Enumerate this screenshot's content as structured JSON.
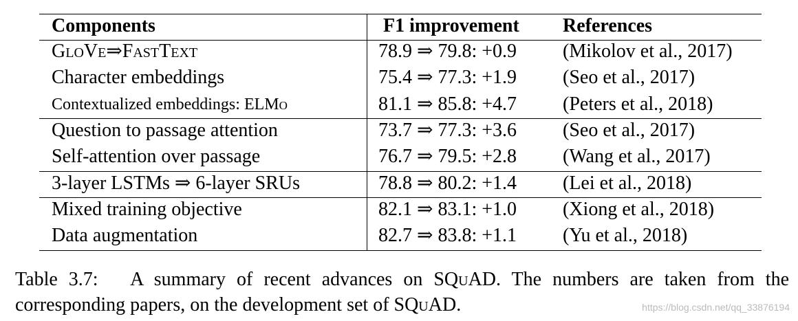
{
  "table": {
    "header": [
      "Components",
      "F1 improvement",
      "References"
    ],
    "rows": [
      {
        "component": "GloVe⇒FastText",
        "f1": "78.9 ⇒ 79.8: +0.9",
        "reference": "(Mikolov et al., 2017)"
      },
      {
        "component": "Character embeddings",
        "f1": "75.4 ⇒ 77.3: +1.9",
        "reference": "(Seo et al., 2017)"
      },
      {
        "component": "Contextualized embeddings: ",
        "component_smallcaps": "ELMo",
        "f1": "81.1 ⇒ 85.8: +4.7",
        "reference": "(Peters et al., 2018)"
      },
      {
        "component": "Question to passage attention",
        "f1": "73.7 ⇒ 77.3: +3.6",
        "reference": "(Seo et al., 2017)"
      },
      {
        "component": "Self-attention over passage",
        "f1": "76.7 ⇒ 79.5: +2.8",
        "reference": "(Wang et al., 2017)"
      },
      {
        "component": "3-layer LSTMs ⇒ 6-layer SRUs",
        "f1": "78.8 ⇒ 80.2: +1.4",
        "reference": "(Lei et al., 2018)"
      },
      {
        "component": "Mixed training objective",
        "f1": "82.1 ⇒ 83.1: +1.0",
        "reference": "(Xiong et al., 2018)"
      },
      {
        "component": "Data augmentation",
        "f1": "82.7 ⇒ 83.8: +1.1",
        "reference": "(Yu et al., 2018)"
      }
    ]
  },
  "caption": {
    "label": "Table 3.7:",
    "parts": [
      "A summary of recent advances on ",
      "SQuAD",
      ". The numbers are taken from the corresponding papers, on the development set of ",
      "SQuAD",
      "."
    ]
  },
  "watermark": "https://blog.csdn.net/qq_33876194"
}
